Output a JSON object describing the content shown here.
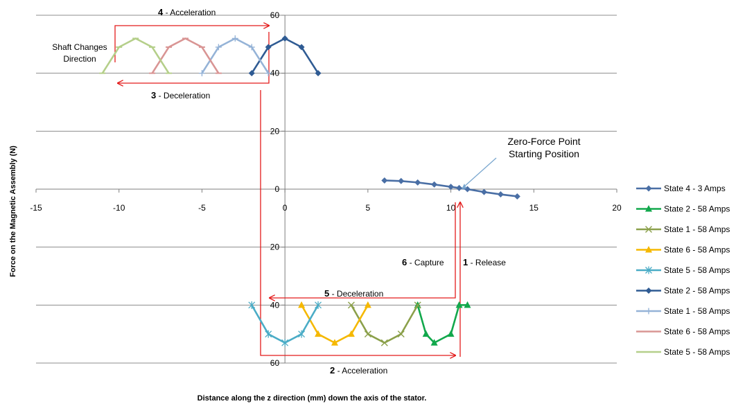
{
  "chart_data": {
    "type": "line",
    "xlabel": "Distance along the z direction (mm) down the axis of the stator.",
    "ylabel": "Force on the Magnetic Assembly (N)",
    "xlim": [
      -15,
      20
    ],
    "ylim": [
      -60,
      60
    ],
    "x_ticks": [
      "-15",
      "-10",
      "-5",
      "0",
      "5",
      "10",
      "15",
      "20"
    ],
    "y_ticks": [
      "60",
      "40",
      "20",
      "0",
      "20",
      "40",
      "60"
    ],
    "grid": "horizontal",
    "legend_position": "right",
    "series": [
      {
        "name": "State 4 - 3 Amps",
        "color": "#4a6fa5",
        "marker": "diamond",
        "x": [
          6,
          7,
          8,
          9,
          10,
          10.5,
          11,
          12,
          13,
          14
        ],
        "y": [
          3,
          2.8,
          2.3,
          1.6,
          0.8,
          0.4,
          0,
          -1,
          -1.8,
          -2.5
        ]
      },
      {
        "name": "State 2 - 58 Amps",
        "color": "#12a84c",
        "marker": "triangle",
        "x": [
          8,
          8.5,
          9,
          10,
          10.5,
          11
        ],
        "y": [
          -40,
          -50,
          -53,
          -50,
          -40,
          -40
        ]
      },
      {
        "name": "State 1 - 58 Amps",
        "color": "#8ba04a",
        "marker": "x",
        "x": [
          4,
          5,
          6,
          7,
          8
        ],
        "y": [
          -40,
          -50,
          -53,
          -50,
          -40
        ]
      },
      {
        "name": "State 6 - 58 Amps",
        "color": "#f5b800",
        "marker": "triangle",
        "x": [
          1,
          2,
          3,
          4,
          5
        ],
        "y": [
          -40,
          -50,
          -53,
          -50,
          -40
        ]
      },
      {
        "name": "State 5 - 58 Amps",
        "color": "#4aacc6",
        "marker": "asterisk",
        "x": [
          -2,
          -1,
          0,
          1,
          2
        ],
        "y": [
          -40,
          -50,
          -53,
          -50,
          -40
        ]
      },
      {
        "name": "State 2 - 58 Amps",
        "color": "#2f5b93",
        "marker": "diamond",
        "x": [
          -2,
          -1,
          0,
          1,
          2
        ],
        "y": [
          40,
          49,
          52,
          49,
          40
        ]
      },
      {
        "name": "State 1 - 58 Amps",
        "color": "#95b3d7",
        "marker": "plus",
        "x": [
          -5,
          -4,
          -3,
          -2,
          -1
        ],
        "y": [
          40,
          49,
          52,
          49,
          40
        ]
      },
      {
        "name": "State 6 - 58 Amps",
        "color": "#d99594",
        "marker": "dash",
        "x": [
          -8,
          -7,
          -6,
          -5,
          -4
        ],
        "y": [
          40,
          49,
          52,
          49,
          40
        ]
      },
      {
        "name": "State 5 - 58 Amps",
        "color": "#b5cf8a",
        "marker": "dash",
        "x": [
          -11,
          -10,
          -9,
          -8,
          -7
        ],
        "y": [
          40,
          49,
          52,
          49,
          40
        ]
      }
    ],
    "annotations": {
      "accel_top": {
        "num": "4",
        "text": " - Acceleration"
      },
      "decel_top": {
        "num": "3",
        "text": " - Deceleration"
      },
      "shaft": [
        "Shaft Changes",
        "Direction"
      ],
      "callout": [
        "Zero-Force Point",
        "Starting Position"
      ],
      "capture": {
        "num": "6",
        "text": " - Capture"
      },
      "release": {
        "num": "1",
        "text": " - Release"
      },
      "decel_bottom": {
        "num": "5",
        "text": " - Deceleration"
      },
      "accel_bottom": {
        "num": "2",
        "text": " - Acceleration"
      }
    },
    "arrow_color": "#e31b1b"
  }
}
